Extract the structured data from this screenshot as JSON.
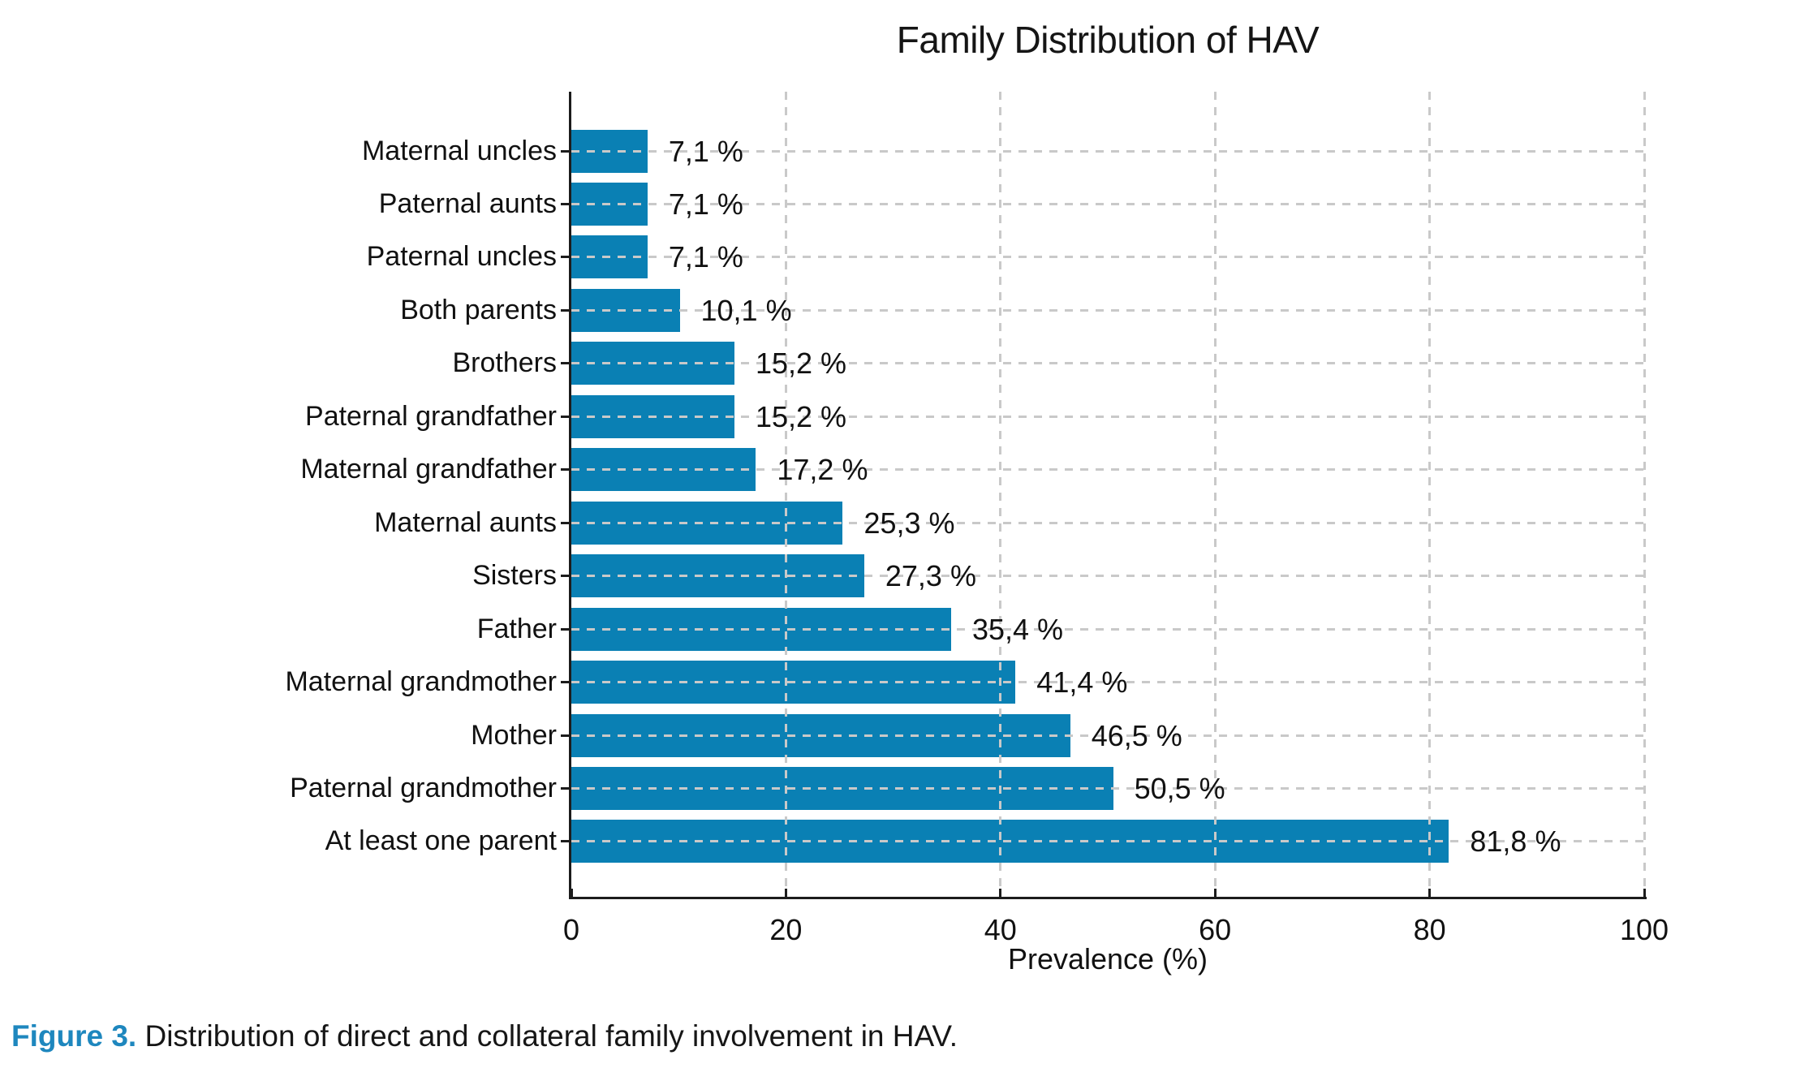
{
  "title": "Family Distribution of HAV",
  "colors": {
    "bar": "#0a80b4",
    "grid": "#c9c9c9",
    "axis": "#1c1c1c",
    "caption_accent": "#1e87be"
  },
  "caption": {
    "label": "Figure 3.",
    "text": "Distribution of direct and collateral family involvement in HAV."
  },
  "chart_data": {
    "type": "bar",
    "orientation": "horizontal",
    "title": "Family Distribution of HAV",
    "xlabel": "Prevalence (%)",
    "xlim": [
      0,
      100
    ],
    "xticks": [
      0,
      20,
      40,
      60,
      80,
      100
    ],
    "grid": "dashed, horizontal per category and vertical at ticks, drawn over bars",
    "order": "top-to-bottom as listed",
    "categories": [
      "Maternal uncles",
      "Paternal aunts",
      "Paternal uncles",
      "Both parents",
      "Brothers",
      "Paternal grandfather",
      "Maternal grandfather",
      "Maternal aunts",
      "Sisters",
      "Father",
      "Maternal grandmother",
      "Mother",
      "Paternal grandmother",
      "At least one parent"
    ],
    "values": [
      7.1,
      7.1,
      7.1,
      10.1,
      15.2,
      15.2,
      17.2,
      25.3,
      27.3,
      35.4,
      41.4,
      46.5,
      50.5,
      81.8
    ],
    "value_labels": [
      "7,1 %",
      "7,1 %",
      "7,1 %",
      "10,1 %",
      "15,2 %",
      "15,2 %",
      "17,2 %",
      "25,3 %",
      "27,3 %",
      "35,4 %",
      "41,4 %",
      "46,5 %",
      "50,5 %",
      "81,8 %"
    ],
    "bar_color": "#0a80b4"
  }
}
